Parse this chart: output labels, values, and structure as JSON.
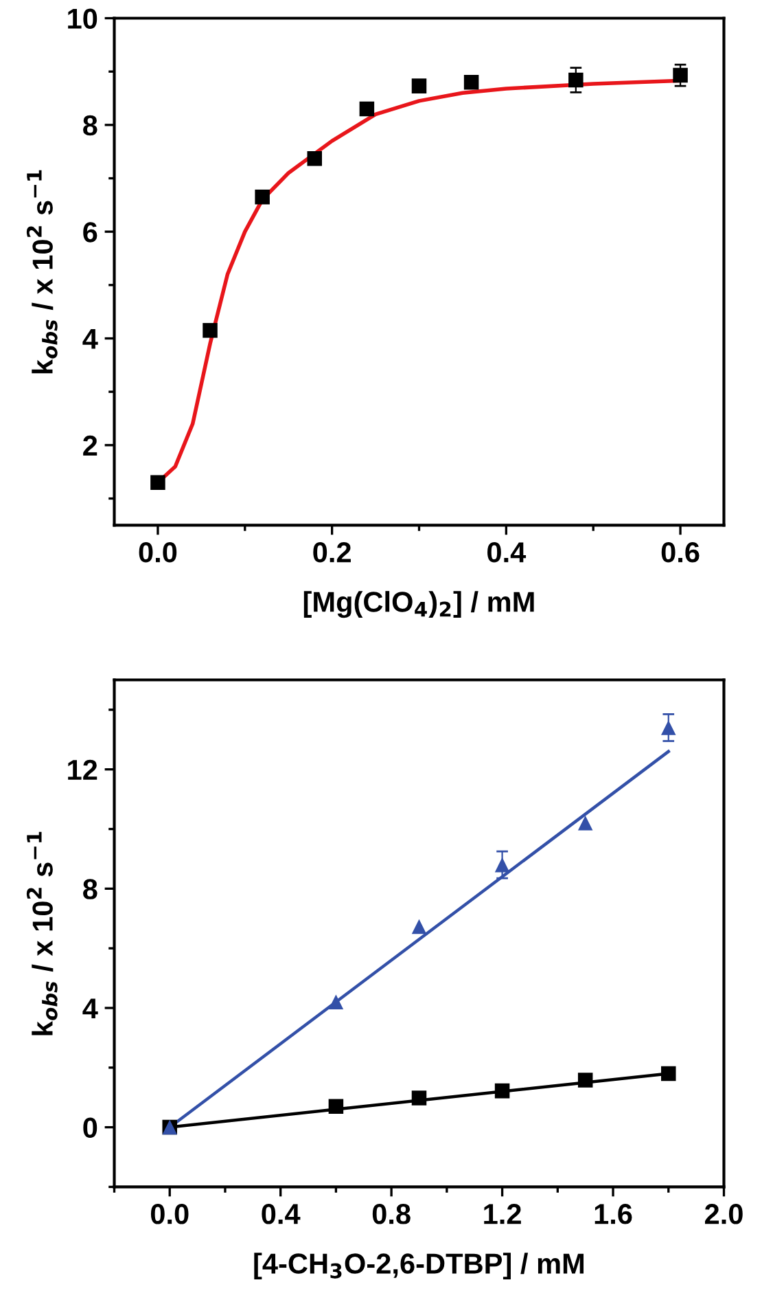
{
  "chart_data": [
    {
      "type": "scatter",
      "xlabel": "[Mg(ClO$_{4}$)$_{2}$] / mM",
      "ylabel": "k$_{obs}$ / x 10$^{2}$ s$^{−1}$",
      "xlim": [
        -0.05,
        0.65
      ],
      "ylim": [
        0.5,
        10
      ],
      "xticks": [
        {
          "value": 0,
          "label": "0.0"
        },
        {
          "value": 0.2,
          "label": "0.2"
        },
        {
          "value": 0.4,
          "label": "0.4"
        },
        {
          "value": 0.6,
          "label": "0.6"
        }
      ],
      "yticks": [
        2,
        4,
        6,
        8,
        10
      ],
      "grid": false,
      "legend": false,
      "series": [
        {
          "type": "line",
          "color": "#e8161b",
          "marker": "none",
          "line_style": "solid",
          "x": [
            0,
            0.02,
            0.04,
            0.06,
            0.08,
            0.1,
            0.12,
            0.15,
            0.2,
            0.25,
            0.3,
            0.35,
            0.4,
            0.5,
            0.6
          ],
          "values": [
            1.3,
            1.6,
            2.4,
            3.9,
            5.2,
            6.0,
            6.6,
            7.1,
            7.7,
            8.2,
            8.45,
            8.6,
            8.68,
            8.77,
            8.83
          ]
        },
        {
          "color": "#000000",
          "marker": "square",
          "x": [
            0,
            0.06,
            0.12,
            0.18,
            0.24,
            0.3,
            0.36,
            0.48,
            0.6
          ],
          "values": [
            1.3,
            4.15,
            6.65,
            7.37,
            8.3,
            8.73,
            8.8,
            8.84,
            8.93
          ],
          "errors": [
            null,
            null,
            null,
            null,
            0.1,
            null,
            null,
            0.23,
            0.2
          ]
        }
      ]
    },
    {
      "type": "scatter",
      "xlabel": "[4-CH$_{3}$O-2,6-DTBP] / mM",
      "ylabel": "k$_{obs}$ / x 10$^{2}$ s$^{−1}$",
      "xlim": [
        -0.2,
        2.0
      ],
      "ylim": [
        -2,
        15
      ],
      "xticks": [
        {
          "value": 0,
          "label": "0.0"
        },
        {
          "value": 0.4,
          "label": "0.4"
        },
        {
          "value": 0.8,
          "label": "0.8"
        },
        {
          "value": 1.2,
          "label": "1.2"
        },
        {
          "value": 1.6,
          "label": "1.6"
        },
        {
          "value": 2.0,
          "label": "2.0"
        }
      ],
      "yticks": [
        0,
        4,
        8,
        12
      ],
      "grid": false,
      "legend": false,
      "series": [
        {
          "type": "line",
          "color": "#3350a8",
          "marker": "none",
          "line_style": "solid",
          "x": [
            0,
            1.8
          ],
          "values": [
            0,
            12.6
          ]
        },
        {
          "type": "line",
          "color": "#000000",
          "marker": "none",
          "line_style": "solid",
          "x": [
            0,
            1.8
          ],
          "values": [
            0,
            1.8
          ]
        },
        {
          "color": "#000000",
          "marker": "square",
          "x": [
            0,
            0.6,
            0.9,
            1.2,
            1.5,
            1.8
          ],
          "values": [
            0,
            0.7,
            0.98,
            1.22,
            1.58,
            1.8
          ]
        },
        {
          "color": "#3350a8",
          "marker": "triangle",
          "x": [
            0,
            0.6,
            0.9,
            1.2,
            1.5,
            1.8
          ],
          "values": [
            0,
            4.2,
            6.73,
            8.8,
            10.2,
            13.4
          ],
          "errors": [
            null,
            null,
            null,
            0.45,
            null,
            0.45
          ]
        }
      ]
    }
  ]
}
